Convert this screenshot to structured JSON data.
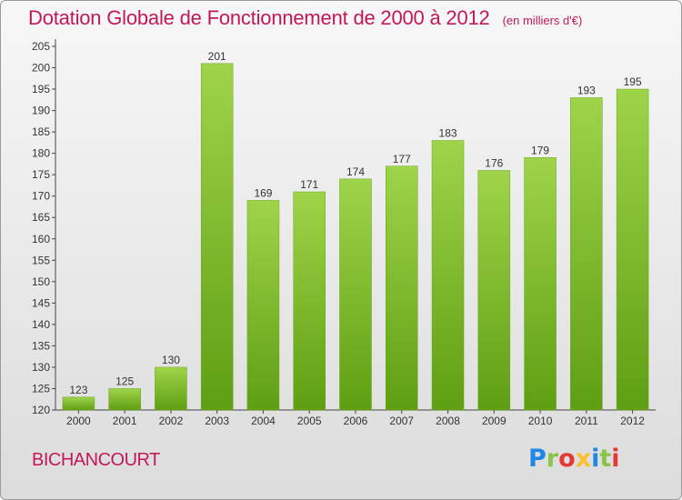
{
  "chart_data": {
    "type": "bar",
    "title": "Dotation Globale de Fonctionnement de 2000 à 2012",
    "subtitle": "(en milliers d'€)",
    "categories": [
      "2000",
      "2001",
      "2002",
      "2003",
      "2004",
      "2005",
      "2006",
      "2007",
      "2008",
      "2009",
      "2010",
      "2011",
      "2012"
    ],
    "values": [
      123,
      125,
      130,
      201,
      169,
      171,
      174,
      177,
      183,
      176,
      179,
      193,
      195
    ],
    "ylim": [
      120,
      205
    ],
    "yticks": [
      120,
      125,
      130,
      135,
      140,
      145,
      150,
      155,
      160,
      165,
      170,
      175,
      180,
      185,
      190,
      195,
      200,
      205
    ],
    "xlabel": "",
    "ylabel": "",
    "grid": false,
    "legend": "none",
    "bar_color": "#7fbf2a"
  },
  "footer": {
    "commune": "BICHANCOURT",
    "brand": "Proxiti",
    "brand_colors": [
      "#1e88e5",
      "#8bc34a",
      "#e53935",
      "#fbc02d",
      "#1e88e5",
      "#8bc34a",
      "#e53935"
    ]
  },
  "colors": {
    "title": "#c2185b",
    "axis": "#333333"
  }
}
